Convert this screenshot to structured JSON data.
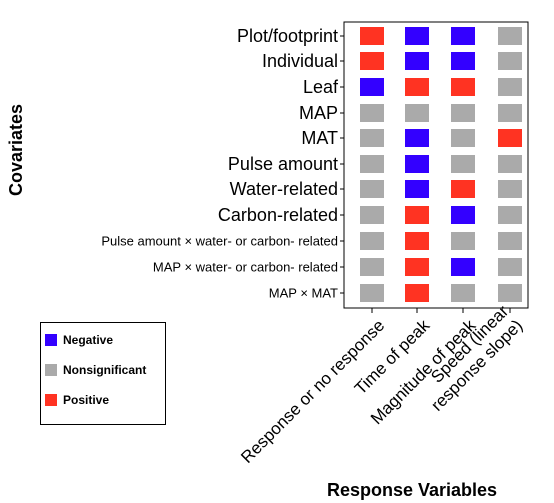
{
  "chart_data": {
    "type": "heatmap",
    "xlabel": "Response Variables",
    "ylabel": "Covariates",
    "columns": [
      "Response or no response",
      "Time of peak",
      "Magnitude of peak",
      "Speed (linear response slope)"
    ],
    "rows": [
      "Plot/footprint",
      "Individual",
      "Leaf",
      "MAP",
      "MAT",
      "Pulse amount",
      "Water-related",
      "Carbon-related",
      "Pulse amount × water- or carbon- related",
      "MAP × water- or carbon- related",
      "MAP × MAT"
    ],
    "values": [
      [
        "Positive",
        "Negative",
        "Negative",
        "Nonsignificant"
      ],
      [
        "Positive",
        "Negative",
        "Negative",
        "Nonsignificant"
      ],
      [
        "Negative",
        "Positive",
        "Positive",
        "Nonsignificant"
      ],
      [
        "Nonsignificant",
        "Nonsignificant",
        "Nonsignificant",
        "Nonsignificant"
      ],
      [
        "Nonsignificant",
        "Negative",
        "Nonsignificant",
        "Positive"
      ],
      [
        "Nonsignificant",
        "Negative",
        "Nonsignificant",
        "Nonsignificant"
      ],
      [
        "Nonsignificant",
        "Negative",
        "Positive",
        "Nonsignificant"
      ],
      [
        "Nonsignificant",
        "Positive",
        "Negative",
        "Nonsignificant"
      ],
      [
        "Nonsignificant",
        "Positive",
        "Nonsignificant",
        "Nonsignificant"
      ],
      [
        "Nonsignificant",
        "Positive",
        "Negative",
        "Nonsignificant"
      ],
      [
        "Nonsignificant",
        "Positive",
        "Nonsignificant",
        "Nonsignificant"
      ]
    ],
    "legend": {
      "position": "bottom-left",
      "entries": [
        {
          "label": "Negative",
          "color": "#3300ff"
        },
        {
          "label": "Nonsignificant",
          "color": "#aaaaaa"
        },
        {
          "label": "Positive",
          "color": "#ff3322"
        }
      ]
    },
    "grid": false
  }
}
